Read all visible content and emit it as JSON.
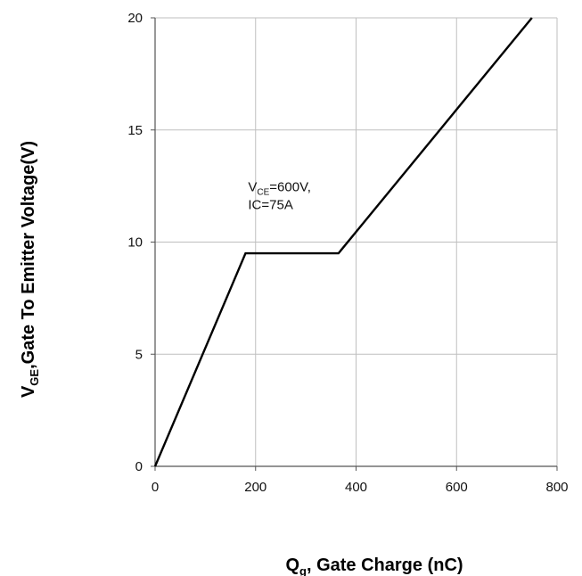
{
  "chart_data": {
    "type": "line",
    "title": "",
    "xlabel": {
      "main": "Q",
      "sub": "g",
      "rest": ", Gate Charge (nC)"
    },
    "ylabel": {
      "main": "V",
      "sub": "GE",
      "rest": ",Gate To Emitter Voltage(V)"
    },
    "xlim": [
      0,
      800
    ],
    "ylim": [
      0,
      20
    ],
    "xticks": [
      0,
      200,
      400,
      600,
      800
    ],
    "yticks": [
      0,
      5,
      10,
      15,
      20
    ],
    "grid": true,
    "series": [
      {
        "x": [
          0,
          180,
          365,
          750
        ],
        "y": [
          0,
          9.5,
          9.5,
          20
        ]
      }
    ],
    "annotation": {
      "line1_main": "V",
      "line1_sub": "CE",
      "line1_rest": "=600V,",
      "line2": "IC=75A",
      "x": 210,
      "y": 12.5
    },
    "colors": {
      "grid": "#bfbfbf",
      "line": "#000000",
      "axes": "#555555"
    }
  }
}
